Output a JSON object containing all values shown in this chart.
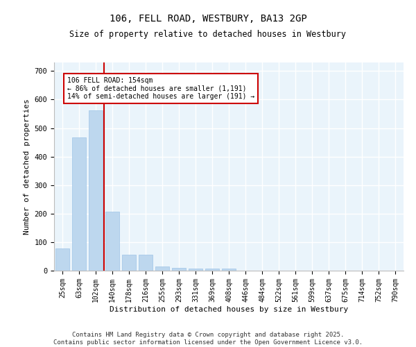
{
  "title1": "106, FELL ROAD, WESTBURY, BA13 2GP",
  "title2": "Size of property relative to detached houses in Westbury",
  "xlabel": "Distribution of detached houses by size in Westbury",
  "ylabel": "Number of detached properties",
  "categories": [
    "25sqm",
    "63sqm",
    "102sqm",
    "140sqm",
    "178sqm",
    "216sqm",
    "255sqm",
    "293sqm",
    "331sqm",
    "369sqm",
    "408sqm",
    "446sqm",
    "484sqm",
    "522sqm",
    "561sqm",
    "599sqm",
    "637sqm",
    "675sqm",
    "714sqm",
    "752sqm",
    "790sqm"
  ],
  "values": [
    78,
    468,
    563,
    207,
    55,
    55,
    15,
    10,
    8,
    8,
    8,
    0,
    0,
    0,
    0,
    0,
    0,
    0,
    0,
    0,
    0
  ],
  "bar_color": "#BDD7EE",
  "bar_edgecolor": "#9DC3E6",
  "ref_line_color": "#CC0000",
  "annotation_text": "106 FELL ROAD: 154sqm\n← 86% of detached houses are smaller (1,191)\n14% of semi-detached houses are larger (191) →",
  "annotation_box_color": "#CC0000",
  "ylim": [
    0,
    730
  ],
  "yticks": [
    0,
    100,
    200,
    300,
    400,
    500,
    600,
    700
  ],
  "background_color": "#EAF4FB",
  "grid_color": "#FFFFFF",
  "footer": "Contains HM Land Registry data © Crown copyright and database right 2025.\nContains public sector information licensed under the Open Government Licence v3.0.",
  "title_fontsize": 10,
  "title2_fontsize": 8.5,
  "label_fontsize": 8,
  "tick_fontsize": 7,
  "footer_fontsize": 6.5,
  "ref_line_index": 2.5
}
